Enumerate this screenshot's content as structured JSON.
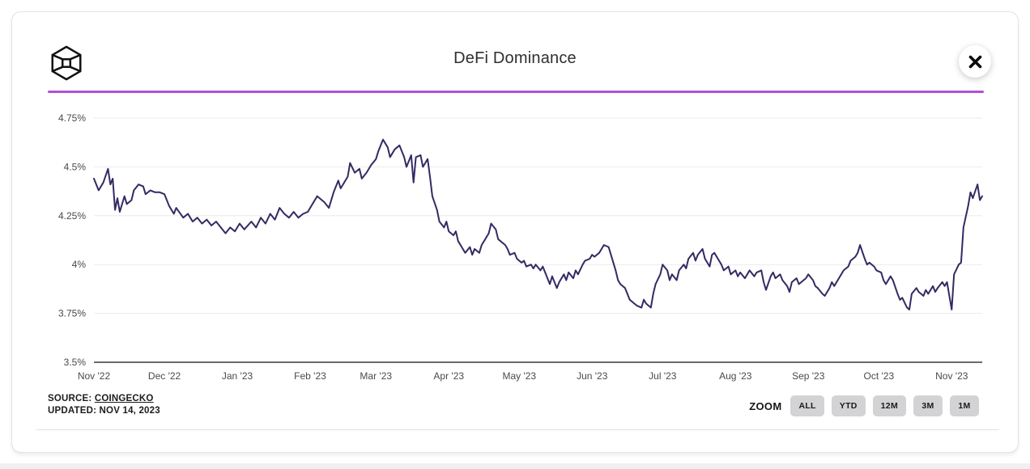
{
  "header": {
    "title": "DeFi Dominance",
    "logo_name": "the-block-logo",
    "close_icon": "x"
  },
  "footer": {
    "source_prefix": "SOURCE: ",
    "source_link": "COINGECKO",
    "updated": "UPDATED: NOV 14, 2023",
    "zoom_label": "ZOOM",
    "zoom_buttons": [
      "ALL",
      "YTD",
      "12M",
      "3M",
      "1M"
    ]
  },
  "colors": {
    "line": "#322b63",
    "header_rule": "#b14fd6",
    "grid": "#ebebed",
    "axis_line": "#3a3a3c",
    "tick_text": "#4a4a4e",
    "button_bg": "#d3d3d5"
  },
  "chart_data": {
    "type": "line",
    "title": "DeFi Dominance",
    "unit": "%",
    "grid": true,
    "legend": "none",
    "ylim": [
      3.5,
      4.75
    ],
    "x_domain_days": [
      0,
      378
    ],
    "x_start": "Nov 1 2022",
    "x_end": "Nov 14 2023",
    "yticks": [
      {
        "label": "4.75%",
        "v": 4.75
      },
      {
        "label": "4.5%",
        "v": 4.5
      },
      {
        "label": "4.25%",
        "v": 4.25
      },
      {
        "label": "4%",
        "v": 4.0
      },
      {
        "label": "3.75%",
        "v": 3.75
      },
      {
        "label": "3.5%",
        "v": 3.5
      }
    ],
    "xticks": [
      {
        "label": "Nov '22",
        "d": 0
      },
      {
        "label": "Dec '22",
        "d": 30
      },
      {
        "label": "Jan '23",
        "d": 61
      },
      {
        "label": "Feb '23",
        "d": 92
      },
      {
        "label": "Mar '23",
        "d": 120
      },
      {
        "label": "Apr '23",
        "d": 151
      },
      {
        "label": "May '23",
        "d": 181
      },
      {
        "label": "Jun '23",
        "d": 212
      },
      {
        "label": "Jul '23",
        "d": 242
      },
      {
        "label": "Aug '23",
        "d": 273
      },
      {
        "label": "Sep '23",
        "d": 304
      },
      {
        "label": "Oct '23",
        "d": 334
      },
      {
        "label": "Nov '23",
        "d": 365
      }
    ],
    "series": [
      {
        "name": "DeFi dominance (%)",
        "points": [
          [
            0,
            4.44
          ],
          [
            2,
            4.38
          ],
          [
            4,
            4.42
          ],
          [
            6,
            4.49
          ],
          [
            7,
            4.41
          ],
          [
            8,
            4.44
          ],
          [
            9,
            4.28
          ],
          [
            10,
            4.34
          ],
          [
            11,
            4.27
          ],
          [
            13,
            4.35
          ],
          [
            14,
            4.31
          ],
          [
            16,
            4.33
          ],
          [
            17,
            4.38
          ],
          [
            19,
            4.41
          ],
          [
            21,
            4.4
          ],
          [
            22,
            4.36
          ],
          [
            24,
            4.38
          ],
          [
            26,
            4.37
          ],
          [
            28,
            4.37
          ],
          [
            30,
            4.36
          ],
          [
            32,
            4.3
          ],
          [
            34,
            4.26
          ],
          [
            35,
            4.29
          ],
          [
            38,
            4.24
          ],
          [
            40,
            4.26
          ],
          [
            42,
            4.22
          ],
          [
            44,
            4.24
          ],
          [
            46,
            4.21
          ],
          [
            48,
            4.23
          ],
          [
            50,
            4.2
          ],
          [
            52,
            4.22
          ],
          [
            54,
            4.19
          ],
          [
            56,
            4.16
          ],
          [
            58,
            4.19
          ],
          [
            60,
            4.17
          ],
          [
            62,
            4.21
          ],
          [
            64,
            4.18
          ],
          [
            67,
            4.22
          ],
          [
            69,
            4.19
          ],
          [
            71,
            4.24
          ],
          [
            73,
            4.21
          ],
          [
            75,
            4.26
          ],
          [
            77,
            4.23
          ],
          [
            79,
            4.29
          ],
          [
            81,
            4.26
          ],
          [
            83,
            4.24
          ],
          [
            85,
            4.27
          ],
          [
            87,
            4.24
          ],
          [
            89,
            4.26
          ],
          [
            91,
            4.27
          ],
          [
            93,
            4.31
          ],
          [
            95,
            4.35
          ],
          [
            98,
            4.32
          ],
          [
            100,
            4.29
          ],
          [
            102,
            4.37
          ],
          [
            104,
            4.43
          ],
          [
            105,
            4.39
          ],
          [
            108,
            4.45
          ],
          [
            109,
            4.52
          ],
          [
            111,
            4.47
          ],
          [
            113,
            4.49
          ],
          [
            114,
            4.44
          ],
          [
            116,
            4.47
          ],
          [
            118,
            4.51
          ],
          [
            120,
            4.54
          ],
          [
            121,
            4.58
          ],
          [
            123,
            4.64
          ],
          [
            125,
            4.6
          ],
          [
            126,
            4.55
          ],
          [
            128,
            4.59
          ],
          [
            130,
            4.61
          ],
          [
            132,
            4.55
          ],
          [
            133,
            4.5
          ],
          [
            135,
            4.56
          ],
          [
            136,
            4.42
          ],
          [
            137,
            4.55
          ],
          [
            139,
            4.56
          ],
          [
            140,
            4.5
          ],
          [
            142,
            4.54
          ],
          [
            143,
            4.45
          ],
          [
            144,
            4.35
          ],
          [
            146,
            4.28
          ],
          [
            147,
            4.22
          ],
          [
            149,
            4.19
          ],
          [
            150,
            4.22
          ],
          [
            151,
            4.17
          ],
          [
            153,
            4.15
          ],
          [
            154,
            4.17
          ],
          [
            155,
            4.12
          ],
          [
            157,
            4.08
          ],
          [
            158,
            4.06
          ],
          [
            160,
            4.09
          ],
          [
            161,
            4.05
          ],
          [
            162,
            4.08
          ],
          [
            164,
            4.06
          ],
          [
            165,
            4.1
          ],
          [
            166,
            4.12
          ],
          [
            168,
            4.16
          ],
          [
            169,
            4.21
          ],
          [
            171,
            4.18
          ],
          [
            172,
            4.13
          ],
          [
            173,
            4.12
          ],
          [
            175,
            4.1
          ],
          [
            176,
            4.08
          ],
          [
            177,
            4.05
          ],
          [
            179,
            4.06
          ],
          [
            180,
            4.03
          ],
          [
            182,
            4.01
          ],
          [
            183,
            4.02
          ],
          [
            184,
            3.99
          ],
          [
            186,
            4.0
          ],
          [
            187,
            3.98
          ],
          [
            188,
            4.0
          ],
          [
            190,
            3.97
          ],
          [
            191,
            3.99
          ],
          [
            193,
            3.93
          ],
          [
            194,
            3.9
          ],
          [
            195,
            3.94
          ],
          [
            197,
            3.88
          ],
          [
            198,
            3.91
          ],
          [
            200,
            3.95
          ],
          [
            201,
            3.92
          ],
          [
            202,
            3.96
          ],
          [
            204,
            3.93
          ],
          [
            205,
            3.97
          ],
          [
            206,
            3.95
          ],
          [
            208,
            4.0
          ],
          [
            209,
            4.02
          ],
          [
            211,
            4.03
          ],
          [
            212,
            4.05
          ],
          [
            213,
            4.04
          ],
          [
            215,
            4.06
          ],
          [
            216,
            4.08
          ],
          [
            217,
            4.1
          ],
          [
            219,
            4.09
          ],
          [
            220,
            4.05
          ],
          [
            222,
            3.97
          ],
          [
            223,
            3.92
          ],
          [
            224,
            3.9
          ],
          [
            226,
            3.88
          ],
          [
            227,
            3.85
          ],
          [
            228,
            3.82
          ],
          [
            230,
            3.8
          ],
          [
            231,
            3.79
          ],
          [
            233,
            3.78
          ],
          [
            234,
            3.82
          ],
          [
            235,
            3.8
          ],
          [
            237,
            3.78
          ],
          [
            238,
            3.85
          ],
          [
            239,
            3.9
          ],
          [
            241,
            3.95
          ],
          [
            242,
            4.0
          ],
          [
            244,
            3.97
          ],
          [
            245,
            3.92
          ],
          [
            246,
            3.95
          ],
          [
            248,
            3.92
          ],
          [
            249,
            3.97
          ],
          [
            251,
            4.0
          ],
          [
            252,
            3.98
          ],
          [
            253,
            4.03
          ],
          [
            255,
            4.06
          ],
          [
            256,
            4.02
          ],
          [
            257,
            4.05
          ],
          [
            259,
            4.08
          ],
          [
            260,
            4.03
          ],
          [
            262,
            3.99
          ],
          [
            263,
            4.05
          ],
          [
            264,
            4.06
          ],
          [
            266,
            4.02
          ],
          [
            267,
            4.0
          ],
          [
            268,
            3.97
          ],
          [
            270,
            3.99
          ],
          [
            271,
            3.95
          ],
          [
            273,
            3.97
          ],
          [
            274,
            3.94
          ],
          [
            275,
            3.96
          ],
          [
            277,
            3.93
          ],
          [
            278,
            3.95
          ],
          [
            279,
            3.97
          ],
          [
            281,
            3.94
          ],
          [
            282,
            3.96
          ],
          [
            284,
            3.97
          ],
          [
            285,
            3.91
          ],
          [
            286,
            3.87
          ],
          [
            288,
            3.94
          ],
          [
            289,
            3.96
          ],
          [
            290,
            3.93
          ],
          [
            292,
            3.95
          ],
          [
            293,
            3.92
          ],
          [
            295,
            3.89
          ],
          [
            296,
            3.86
          ],
          [
            297,
            3.91
          ],
          [
            299,
            3.93
          ],
          [
            300,
            3.9
          ],
          [
            302,
            3.92
          ],
          [
            303,
            3.93
          ],
          [
            304,
            3.95
          ],
          [
            306,
            3.92
          ],
          [
            307,
            3.89
          ],
          [
            308,
            3.88
          ],
          [
            310,
            3.85
          ],
          [
            311,
            3.84
          ],
          [
            313,
            3.88
          ],
          [
            314,
            3.91
          ],
          [
            315,
            3.89
          ],
          [
            317,
            3.93
          ],
          [
            318,
            3.95
          ],
          [
            319,
            3.97
          ],
          [
            321,
            3.99
          ],
          [
            322,
            4.02
          ],
          [
            324,
            4.04
          ],
          [
            325,
            4.06
          ],
          [
            326,
            4.1
          ],
          [
            328,
            4.03
          ],
          [
            329,
            4.0
          ],
          [
            330,
            4.01
          ],
          [
            332,
            3.99
          ],
          [
            333,
            3.97
          ],
          [
            335,
            3.96
          ],
          [
            336,
            3.92
          ],
          [
            337,
            3.9
          ],
          [
            339,
            3.94
          ],
          [
            340,
            3.92
          ],
          [
            342,
            3.85
          ],
          [
            343,
            3.82
          ],
          [
            344,
            3.83
          ],
          [
            346,
            3.78
          ],
          [
            347,
            3.77
          ],
          [
            348,
            3.85
          ],
          [
            350,
            3.88
          ],
          [
            351,
            3.86
          ],
          [
            353,
            3.84
          ],
          [
            354,
            3.87
          ],
          [
            355,
            3.85
          ],
          [
            357,
            3.89
          ],
          [
            358,
            3.86
          ],
          [
            359,
            3.88
          ],
          [
            361,
            3.91
          ],
          [
            362,
            3.89
          ],
          [
            363,
            3.91
          ],
          [
            365,
            3.77
          ],
          [
            366,
            3.95
          ],
          [
            368,
            4.0
          ],
          [
            369,
            4.01
          ],
          [
            370,
            4.19
          ],
          [
            372,
            4.3
          ],
          [
            373,
            4.37
          ],
          [
            374,
            4.34
          ],
          [
            376,
            4.41
          ],
          [
            377,
            4.33
          ],
          [
            378,
            4.35
          ]
        ]
      }
    ]
  }
}
